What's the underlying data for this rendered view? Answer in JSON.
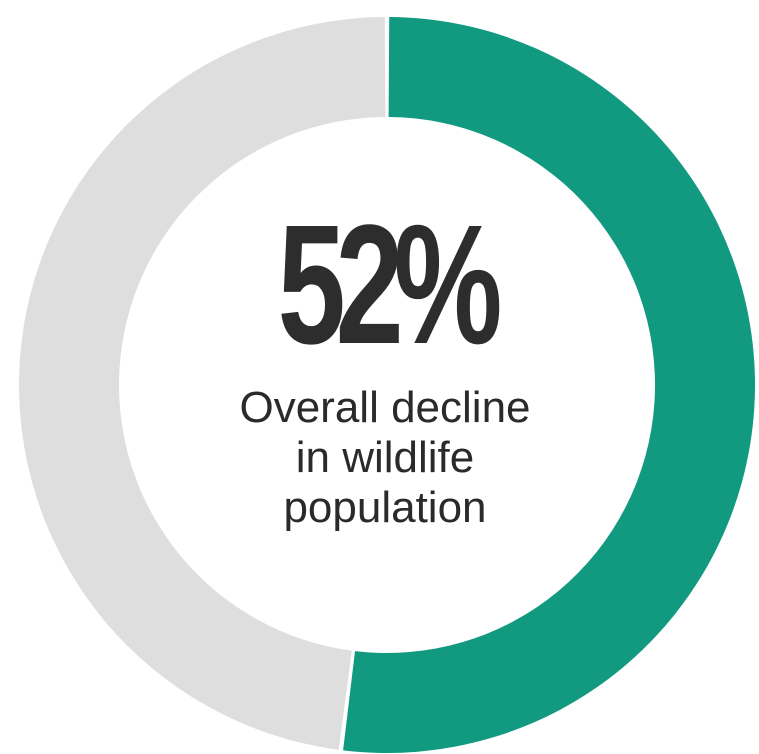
{
  "chart_data": {
    "type": "pie",
    "variant": "donut",
    "value_label": "52%",
    "caption_lines": [
      "Overall decline",
      "in wildlife",
      "population"
    ],
    "slices": [
      {
        "value": 52,
        "color": "#129a80"
      },
      {
        "value": 48,
        "color": "#dedede"
      }
    ]
  }
}
